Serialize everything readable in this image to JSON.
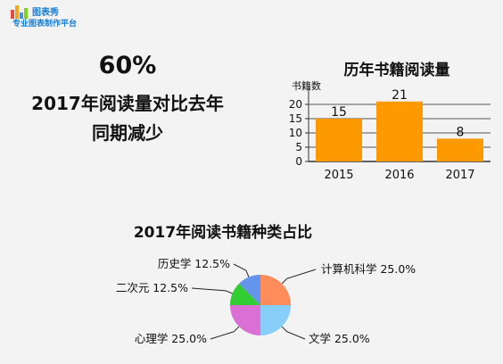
{
  "brand": {
    "name": "图表秀",
    "tagline": "专业图表制作平台",
    "bar_colors": [
      "#e84c3d",
      "#f5a623",
      "#4a90e2",
      "#7ed321"
    ]
  },
  "headline": {
    "value": "60%",
    "line1": "2017年阅读量对比去年",
    "line2": "同期减少"
  },
  "chart_data": [
    {
      "type": "bar",
      "title": "历年书籍阅读量",
      "ylabel": "书籍数",
      "xlabel": "",
      "categories": [
        "2015",
        "2016",
        "2017"
      ],
      "values": [
        15,
        21,
        8
      ],
      "ylim": [
        0,
        25
      ],
      "yticks": [
        0,
        5,
        10,
        15,
        20
      ],
      "grid": true,
      "color": "#ff9900"
    },
    {
      "type": "pie",
      "title": "2017年阅读书籍种类占比",
      "slices": [
        {
          "label": "计算机科学 25.0%",
          "value": 25.0,
          "color": "#ff8c5a"
        },
        {
          "label": "文学 25.0%",
          "value": 25.0,
          "color": "#87cefa"
        },
        {
          "label": "心理学 25.0%",
          "value": 25.0,
          "color": "#da70d6"
        },
        {
          "label": "二次元 12.5%",
          "value": 12.5,
          "color": "#32cd32"
        },
        {
          "label": "历史学 12.5%",
          "value": 12.5,
          "color": "#6495ed"
        }
      ]
    }
  ]
}
